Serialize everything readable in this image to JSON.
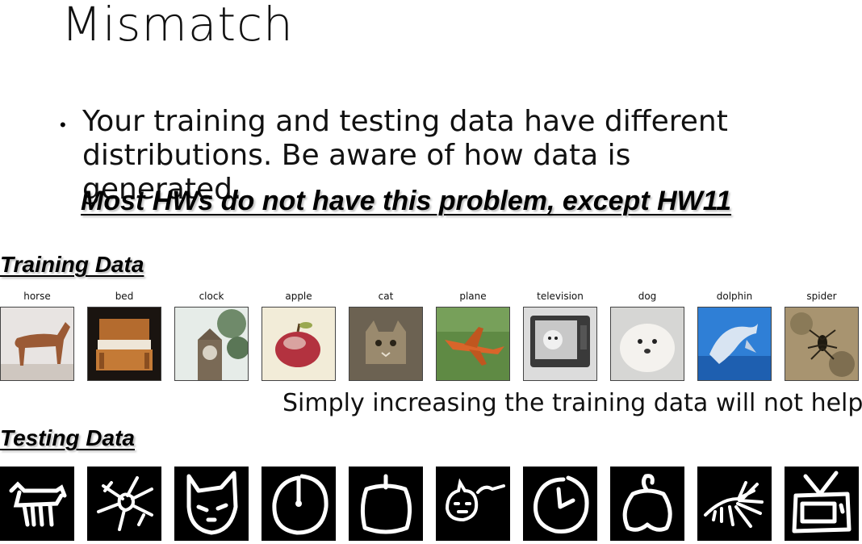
{
  "slide": {
    "title": "Mismatch",
    "bullet": "Your training and testing data have different distributions.  Be aware of how data is generated.",
    "highlight": "Most HWs do not have this problem, except HW11",
    "training_label": "Training Data",
    "testing_label": "Testing Data",
    "note": "Simply increasing the training data will not help."
  },
  "training": [
    {
      "caption": "horse"
    },
    {
      "caption": "bed"
    },
    {
      "caption": "clock"
    },
    {
      "caption": "apple"
    },
    {
      "caption": "cat"
    },
    {
      "caption": "plane"
    },
    {
      "caption": "television"
    },
    {
      "caption": "dog"
    },
    {
      "caption": "dolphin"
    },
    {
      "caption": "spider"
    }
  ],
  "testing": [
    {
      "icon": "horse-sketch-icon"
    },
    {
      "icon": "spider-sketch-icon"
    },
    {
      "icon": "cat-sketch-icon"
    },
    {
      "icon": "clock-sketch-icon"
    },
    {
      "icon": "apple-sketch-icon"
    },
    {
      "icon": "dog-sketch-icon"
    },
    {
      "icon": "clock-sketch-icon"
    },
    {
      "icon": "apple-sketch-icon"
    },
    {
      "icon": "dolphin-sketch-icon"
    },
    {
      "icon": "television-sketch-icon"
    }
  ]
}
